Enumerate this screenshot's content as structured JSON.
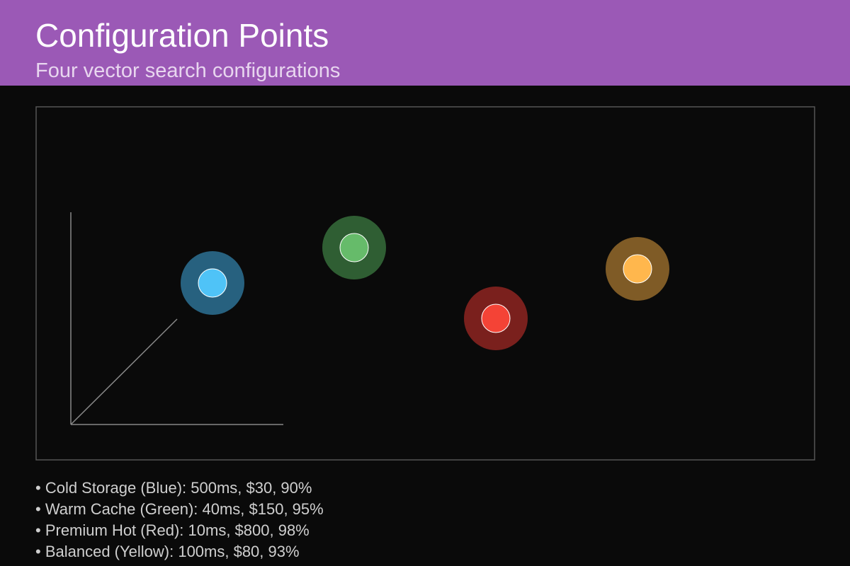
{
  "header": {
    "title": "Configuration Points",
    "subtitle": "Four vector search configurations"
  },
  "colors": {
    "header_bg": "#9b59b6",
    "background": "#0a0a0a",
    "frame": "#555555",
    "axis": "#888888"
  },
  "chart_data": {
    "type": "scatter",
    "title": "Configuration Points",
    "subtitle": "Four vector search configurations",
    "dimensions": [
      "latency_ms",
      "cost_usd",
      "recall_pct"
    ],
    "grid": false,
    "points": [
      {
        "name": "Cold Storage",
        "color_name": "Blue",
        "latency_ms": 500,
        "cost_usd": 30,
        "recall_pct": 90,
        "fill": "#4fc3f7",
        "halo": "#27617f"
      },
      {
        "name": "Warm Cache",
        "color_name": "Green",
        "latency_ms": 40,
        "cost_usd": 150,
        "recall_pct": 95,
        "fill": "#66bb6a",
        "halo": "#2f5e33"
      },
      {
        "name": "Premium Hot",
        "color_name": "Red",
        "latency_ms": 10,
        "cost_usd": 800,
        "recall_pct": 98,
        "fill": "#f44336",
        "halo": "#7a201d"
      },
      {
        "name": "Balanced",
        "color_name": "Yellow",
        "latency_ms": 100,
        "cost_usd": 80,
        "recall_pct": 93,
        "fill": "#ffb74d",
        "halo": "#7f5b26"
      }
    ]
  },
  "legend": {
    "items": [
      "• Cold Storage (Blue): 500ms, $30, 90%",
      "• Warm Cache (Green): 40ms, $150, 95%",
      "• Premium Hot (Red): 10ms, $800, 98%",
      "• Balanced (Yellow): 100ms, $80, 93%"
    ]
  }
}
